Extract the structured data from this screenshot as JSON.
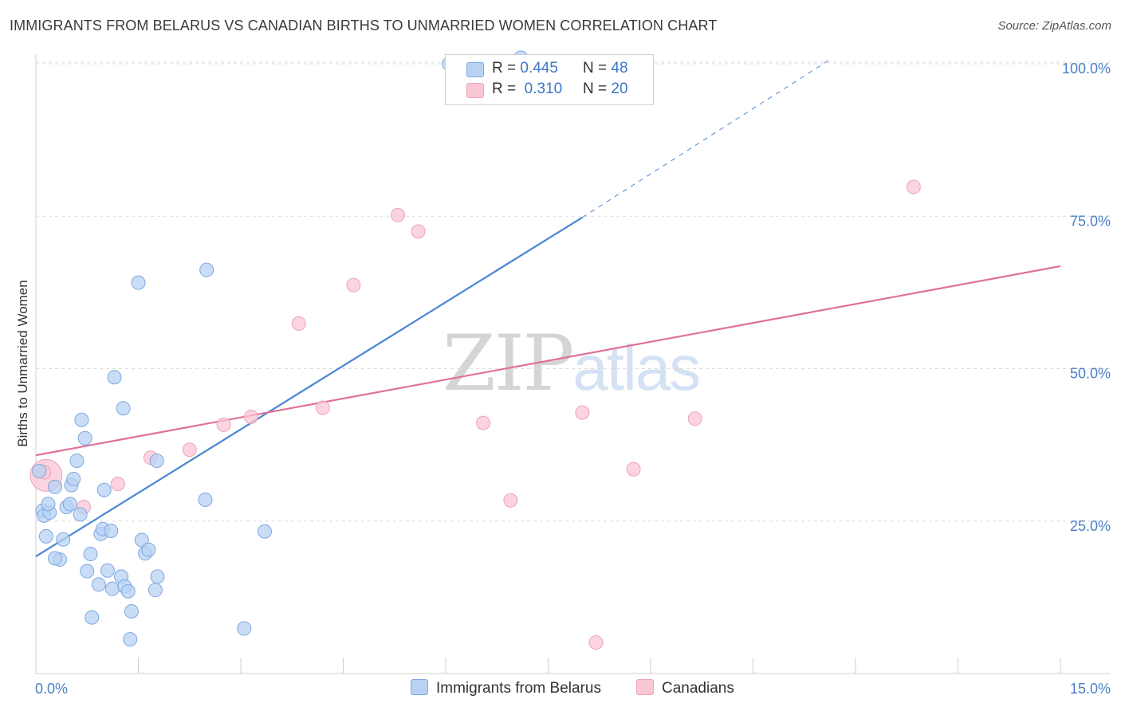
{
  "title": "IMMIGRANTS FROM BELARUS VS CANADIAN BIRTHS TO UNMARRIED WOMEN CORRELATION CHART",
  "source": "Source: ZipAtlas.com",
  "watermark": {
    "zip": "ZIP",
    "atlas": "atlas"
  },
  "legend_top": [
    {
      "r_label": "R =",
      "r_value": "0.445",
      "n_label": "N =",
      "n_value": "48",
      "color": "#b8d2f3"
    },
    {
      "r_label": "R =",
      "r_value": "0.310",
      "n_label": "N =",
      "n_value": "20",
      "color": "#f9c6d4"
    }
  ],
  "legend_bottom": [
    {
      "label": "Immigrants from Belarus",
      "color": "#b8d2f3"
    },
    {
      "label": "Canadians",
      "color": "#f9c6d4"
    }
  ],
  "chart_data": {
    "type": "scatter",
    "title": "IMMIGRANTS FROM BELARUS VS CANADIAN BIRTHS TO UNMARRIED WOMEN CORRELATION CHART",
    "xlabel": "",
    "ylabel": "Births to Unmarried Women",
    "xlim": [
      0,
      15
    ],
    "ylim": [
      0,
      100
    ],
    "x_tick_labels": [
      "0.0%",
      "15.0%"
    ],
    "y_ticks": [
      25,
      50,
      75,
      100
    ],
    "y_tick_labels": [
      "25.0%",
      "50.0%",
      "75.0%",
      "100.0%"
    ],
    "grid": true,
    "legend_position": "top-center",
    "series": [
      {
        "name": "Immigrants from Belarus",
        "color": "#4a86d4",
        "fill": "#b8d2f3",
        "points": [
          [
            0.05,
            33.2
          ],
          [
            0.1,
            26.7
          ],
          [
            0.12,
            25.9
          ],
          [
            0.2,
            26.4
          ],
          [
            0.15,
            22.5
          ],
          [
            0.18,
            27.8
          ],
          [
            0.28,
            30.6
          ],
          [
            0.35,
            18.7
          ],
          [
            0.28,
            18.9
          ],
          [
            0.4,
            22.0
          ],
          [
            0.45,
            27.3
          ],
          [
            0.5,
            27.8
          ],
          [
            0.52,
            30.9
          ],
          [
            0.55,
            31.9
          ],
          [
            0.6,
            34.9
          ],
          [
            0.65,
            26.1
          ],
          [
            0.67,
            41.6
          ],
          [
            0.72,
            38.6
          ],
          [
            0.75,
            16.8
          ],
          [
            0.8,
            19.6
          ],
          [
            0.82,
            9.2
          ],
          [
            0.92,
            14.6
          ],
          [
            0.95,
            22.9
          ],
          [
            0.98,
            23.7
          ],
          [
            1.0,
            30.1
          ],
          [
            1.05,
            16.9
          ],
          [
            1.1,
            23.4
          ],
          [
            1.12,
            13.9
          ],
          [
            1.15,
            48.6
          ],
          [
            1.25,
            15.9
          ],
          [
            1.28,
            43.5
          ],
          [
            1.3,
            14.3
          ],
          [
            1.35,
            13.5
          ],
          [
            1.38,
            5.6
          ],
          [
            1.4,
            10.2
          ],
          [
            1.5,
            64.1
          ],
          [
            1.55,
            21.9
          ],
          [
            1.6,
            19.7
          ],
          [
            1.65,
            20.3
          ],
          [
            1.75,
            13.7
          ],
          [
            1.78,
            15.9
          ],
          [
            1.77,
            34.9
          ],
          [
            2.48,
            28.5
          ],
          [
            2.5,
            66.2
          ],
          [
            3.05,
            7.4
          ],
          [
            3.35,
            23.3
          ],
          [
            6.05,
            100.0
          ],
          [
            7.1,
            101.0
          ]
        ],
        "trendline": {
          "x": [
            0.0,
            8.0
          ],
          "y": [
            19.2,
            74.8
          ],
          "dashed_extension": {
            "x": [
              8.0,
              11.6
            ],
            "y": [
              74.8,
              100.5
            ]
          }
        }
      },
      {
        "name": "Canadians",
        "color": "#e07098",
        "fill": "#f9c6d4",
        "points": [
          [
            0.15,
            32.5
          ],
          [
            0.7,
            27.3
          ],
          [
            1.2,
            31.1
          ],
          [
            1.68,
            35.4
          ],
          [
            2.25,
            36.7
          ],
          [
            2.75,
            40.8
          ],
          [
            3.15,
            42.1
          ],
          [
            3.85,
            57.4
          ],
          [
            4.2,
            43.6
          ],
          [
            4.65,
            63.7
          ],
          [
            5.3,
            75.2
          ],
          [
            5.6,
            72.5
          ],
          [
            6.55,
            41.1
          ],
          [
            6.95,
            28.4
          ],
          [
            8.0,
            42.8
          ],
          [
            8.2,
            5.1
          ],
          [
            8.75,
            33.5
          ],
          [
            9.65,
            41.8
          ],
          [
            12.85,
            79.8
          ],
          [
            0.12,
            33.0
          ]
        ],
        "trendline": {
          "x": [
            0.0,
            15.0
          ],
          "y": [
            35.8,
            66.8
          ]
        }
      }
    ]
  }
}
